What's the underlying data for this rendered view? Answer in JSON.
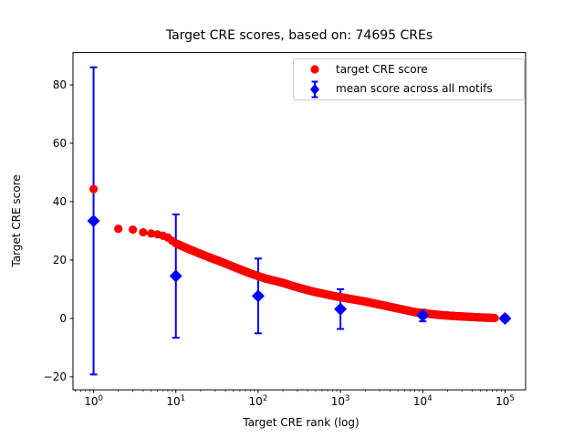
{
  "title": "Target CRE scores, based on: 74695 CREs",
  "chart_data": {
    "type": "scatter",
    "title": "Target CRE scores, based on: 74695 CREs",
    "xlabel": "Target CRE rank (log)",
    "ylabel": "Target CRE score",
    "n_points": 74695,
    "grid": false,
    "legend_position": "upper right",
    "axes": {
      "x_scale": "log",
      "xlim_log": [
        -0.25,
        5.25
      ],
      "ylim": [
        -24.45,
        91.05
      ],
      "x_tick_exponents": [
        0,
        1,
        2,
        3,
        4,
        5
      ],
      "y_ticks": [
        -20,
        0,
        20,
        40,
        60,
        80
      ]
    },
    "series": [
      {
        "name": "target CRE score",
        "marker": "circle",
        "color": "#ff0000",
        "points_note": "74695 ranked scores forming a dense curve; anchor samples (rank, score) read from plot",
        "points": [
          [
            1,
            44.3
          ],
          [
            2,
            30.7
          ],
          [
            3,
            30.4
          ],
          [
            4,
            29.5
          ],
          [
            5,
            29.1
          ],
          [
            6,
            28.8
          ],
          [
            7,
            28.3
          ],
          [
            8,
            27.7
          ],
          [
            9,
            26.6
          ],
          [
            10,
            25.7
          ],
          [
            13,
            24.3
          ],
          [
            16,
            23.2
          ],
          [
            20,
            22.1
          ],
          [
            25,
            21.0
          ],
          [
            32,
            19.9
          ],
          [
            40,
            18.8
          ],
          [
            50,
            17.7
          ],
          [
            63,
            16.6
          ],
          [
            79,
            15.5
          ],
          [
            100,
            14.5
          ],
          [
            126,
            13.6
          ],
          [
            158,
            12.9
          ],
          [
            200,
            12.2
          ],
          [
            251,
            11.3
          ],
          [
            316,
            10.5
          ],
          [
            398,
            9.7
          ],
          [
            501,
            9.0
          ],
          [
            631,
            8.4
          ],
          [
            794,
            7.8
          ],
          [
            1000,
            7.3
          ],
          [
            1259,
            6.8
          ],
          [
            1585,
            6.3
          ],
          [
            2000,
            5.8
          ],
          [
            2512,
            5.2
          ],
          [
            3162,
            4.6
          ],
          [
            3981,
            4.0
          ],
          [
            5012,
            3.4
          ],
          [
            6310,
            2.8
          ],
          [
            7943,
            2.2
          ],
          [
            10000,
            1.8
          ],
          [
            12589,
            1.5
          ],
          [
            15849,
            1.2
          ],
          [
            19953,
            1.0
          ],
          [
            25119,
            0.8
          ],
          [
            31623,
            0.65
          ],
          [
            39811,
            0.5
          ],
          [
            50119,
            0.35
          ],
          [
            63096,
            0.25
          ],
          [
            74695,
            0.15
          ]
        ]
      },
      {
        "name": "mean score across all motifs",
        "marker": "diamond",
        "color": "#0000ff",
        "x": [
          1,
          10,
          100,
          1000,
          10000,
          100000
        ],
        "y": [
          33.4,
          14.5,
          7.7,
          3.2,
          1.0,
          0.0
        ],
        "yerr": [
          52.6,
          21.1,
          12.8,
          6.8,
          2.0,
          0.9
        ]
      }
    ]
  }
}
